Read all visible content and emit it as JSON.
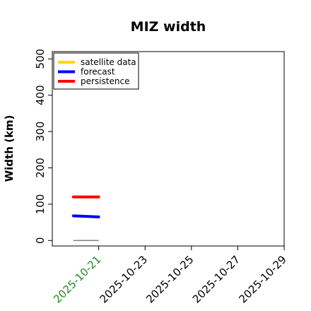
{
  "chart_data": {
    "type": "line",
    "title": "MIZ width",
    "xlabel": "",
    "ylabel": "Width (km)",
    "ylim": [
      -15,
      520
    ],
    "yticks": [
      "0",
      "100",
      "200",
      "300",
      "400",
      "500"
    ],
    "xlim": [
      "2025-10-19",
      "2025-10-29"
    ],
    "xticks": [
      {
        "label": "2025-10-21",
        "date": "2025-10-21",
        "color": "#228B22"
      },
      {
        "label": "2025-10-23",
        "date": "2025-10-23",
        "color": "#000000"
      },
      {
        "label": "2025-10-25",
        "date": "2025-10-25",
        "color": "#000000"
      },
      {
        "label": "2025-10-27",
        "date": "2025-10-27",
        "color": "#000000"
      },
      {
        "label": "2025-10-29",
        "date": "2025-10-29",
        "color": "#000000"
      }
    ],
    "legend_position": "top-left",
    "grid": false,
    "series": [
      {
        "name": "satellite data",
        "color": "#FFD700",
        "x": [
          "2025-10-20",
          "2025-10-21"
        ],
        "y": [
          null,
          null
        ]
      },
      {
        "name": "forecast",
        "color": "#0000FF",
        "x": [
          "2025-10-20",
          "2025-10-21"
        ],
        "y": [
          68,
          65
        ]
      },
      {
        "name": "persistence",
        "color": "#FF0000",
        "x": [
          "2025-10-20",
          "2025-10-21"
        ],
        "y": [
          120,
          120
        ]
      }
    ],
    "reference_line": {
      "color": "#808080",
      "x": [
        "2025-10-20",
        "2025-10-21"
      ],
      "y": [
        0,
        0
      ]
    }
  }
}
